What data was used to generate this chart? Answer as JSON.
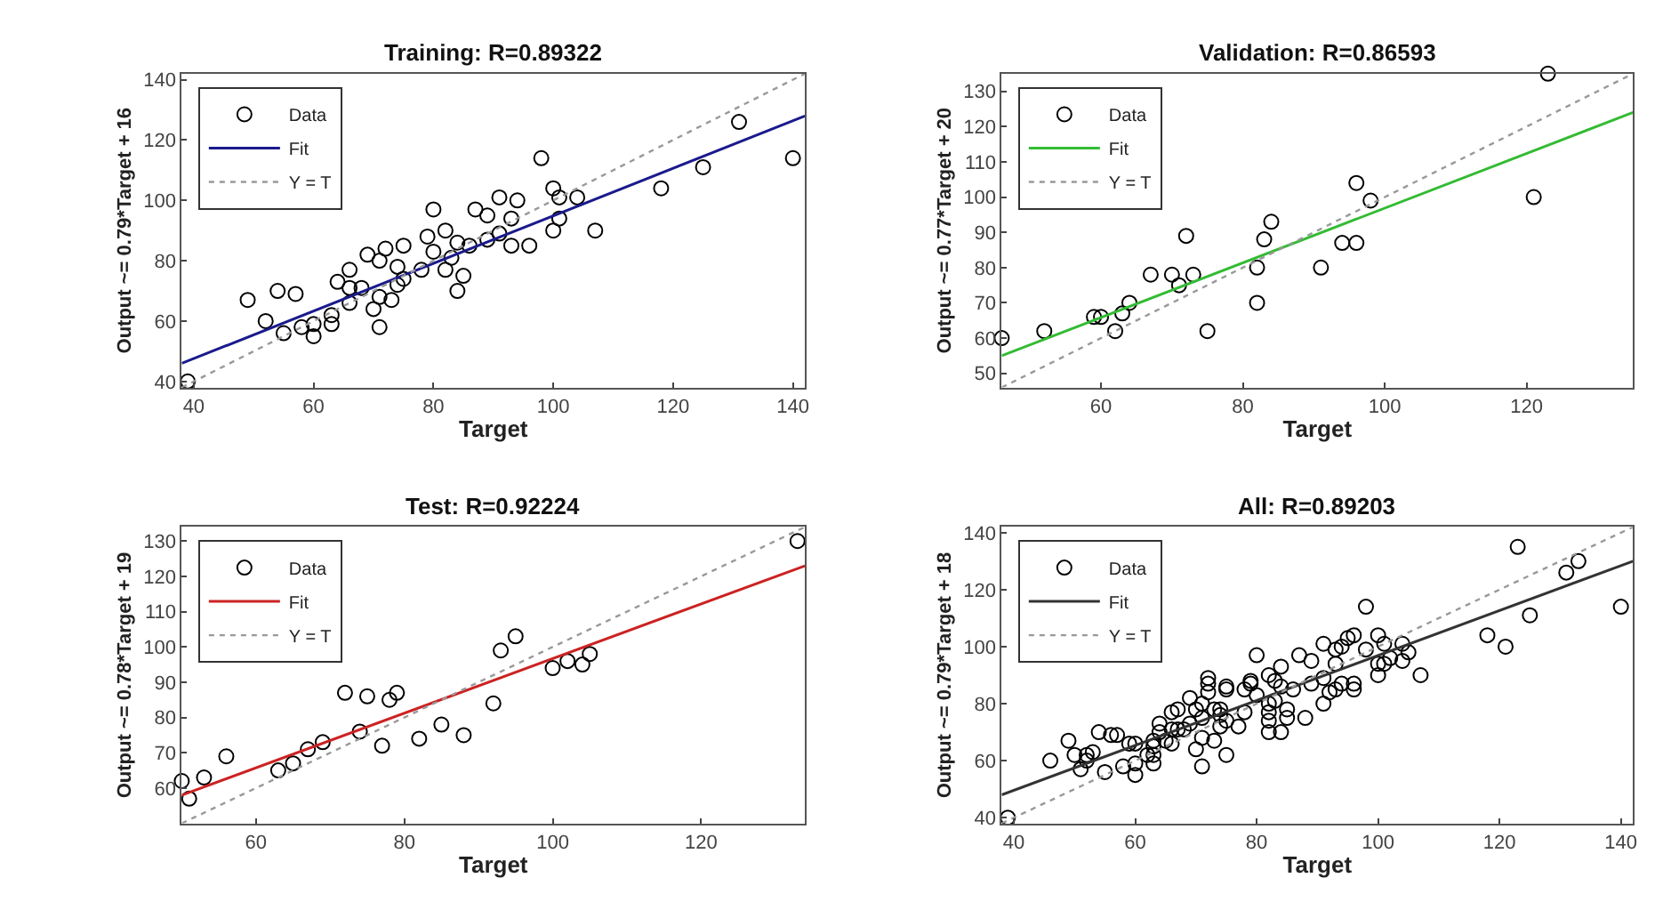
{
  "chart_data": [
    {
      "type": "scatter",
      "title": "Training: R=0.89322",
      "xlabel": "Target",
      "ylabel": "Output ~= 0.79*Target + 16",
      "xlim": [
        38,
        142
      ],
      "ylim": [
        38,
        142
      ],
      "xticks": [
        40,
        60,
        80,
        100,
        120,
        140
      ],
      "yticks": [
        40,
        60,
        80,
        100,
        120,
        140
      ],
      "legend": "top left",
      "series": [
        {
          "name": "Data",
          "marker": "circle",
          "color": "#000000",
          "x": [
            39,
            49,
            54,
            52,
            55,
            58,
            60,
            57,
            63,
            63,
            66,
            66,
            69,
            71,
            72,
            74,
            71,
            70,
            73,
            75,
            71,
            68,
            64,
            78,
            79,
            80,
            82,
            80,
            82,
            84,
            85,
            86,
            87,
            89,
            91,
            93,
            93,
            91,
            96,
            98,
            100,
            101,
            104,
            100,
            101,
            107,
            118,
            125,
            131,
            140,
            89,
            84,
            75,
            74,
            66,
            60,
            94,
            83
          ],
          "values": [
            40,
            67,
            70,
            60,
            56,
            58,
            59,
            69,
            62,
            59,
            71,
            77,
            82,
            80,
            84,
            72,
            58,
            64,
            67,
            74,
            68,
            71,
            73,
            77,
            88,
            97,
            90,
            83,
            77,
            70,
            75,
            85,
            97,
            95,
            101,
            94,
            85,
            89,
            85,
            114,
            104,
            101,
            101,
            90,
            94,
            90,
            104,
            111,
            126,
            114,
            87,
            86,
            85,
            78,
            66,
            55,
            100,
            81
          ]
        },
        {
          "name": "Fit",
          "type": "line",
          "line_style": "solid",
          "color": "#1a1a8c",
          "x": [
            38,
            142
          ],
          "values": [
            46,
            128
          ]
        },
        {
          "name": "Y = T",
          "type": "line",
          "line_style": "dotted",
          "color": "#999999",
          "x": [
            38,
            142
          ],
          "values": [
            38,
            142
          ]
        }
      ]
    },
    {
      "type": "scatter",
      "title": "Validation: R=0.86593",
      "xlabel": "Target",
      "ylabel": "Output ~= 0.77*Target + 20",
      "xlim": [
        46,
        135
      ],
      "ylim": [
        46,
        135
      ],
      "xticks": [
        60,
        80,
        100,
        120
      ],
      "yticks": [
        50,
        60,
        70,
        80,
        90,
        100,
        110,
        120,
        130
      ],
      "legend": "top left",
      "series": [
        {
          "name": "Data",
          "marker": "circle",
          "color": "#000000",
          "x": [
            46,
            52,
            59,
            60,
            62,
            63,
            64,
            67,
            70,
            71,
            72,
            73,
            75,
            82,
            82,
            83,
            84,
            91,
            94,
            96,
            96,
            98,
            121,
            123
          ],
          "values": [
            60,
            62,
            66,
            66,
            62,
            67,
            70,
            78,
            78,
            75,
            89,
            78,
            62,
            70,
            80,
            88,
            93,
            80,
            87,
            87,
            104,
            99,
            100,
            135
          ]
        },
        {
          "name": "Fit",
          "type": "line",
          "line_style": "solid",
          "color": "#33bb33",
          "x": [
            46,
            135
          ],
          "values": [
            55,
            124
          ]
        },
        {
          "name": "Y = T",
          "type": "line",
          "line_style": "dotted",
          "color": "#999999",
          "x": [
            46,
            135
          ],
          "values": [
            46,
            135
          ]
        }
      ]
    },
    {
      "type": "scatter",
      "title": "Test: R=0.92224",
      "xlabel": "Target",
      "ylabel": "Output ~= 0.78*Target + 19",
      "xlim": [
        50,
        134
      ],
      "ylim": [
        50,
        134
      ],
      "xticks": [
        60,
        80,
        100,
        120
      ],
      "yticks": [
        60,
        70,
        80,
        90,
        100,
        110,
        120,
        130
      ],
      "legend": "top left",
      "series": [
        {
          "name": "Data",
          "marker": "circle",
          "color": "#000000",
          "x": [
            50,
            51,
            53,
            56,
            63,
            65,
            67,
            69,
            72,
            74,
            75,
            77,
            78,
            79,
            82,
            85,
            88,
            92,
            93,
            95,
            100,
            102,
            104,
            105,
            133
          ],
          "values": [
            62,
            57,
            63,
            69,
            65,
            67,
            71,
            73,
            87,
            76,
            86,
            72,
            85,
            87,
            74,
            78,
            75,
            84,
            99,
            103,
            94,
            96,
            95,
            98,
            130
          ]
        },
        {
          "name": "Fit",
          "type": "line",
          "line_style": "solid",
          "color": "#cc2222",
          "x": [
            50,
            134
          ],
          "values": [
            58,
            123
          ]
        },
        {
          "name": "Y = T",
          "type": "line",
          "line_style": "dotted",
          "color": "#999999",
          "x": [
            50,
            134
          ],
          "values": [
            50,
            134
          ]
        }
      ]
    },
    {
      "type": "scatter",
      "title": "All: R=0.89203",
      "xlabel": "Target",
      "ylabel": "Output ~= 0.79*Target + 18",
      "xlim": [
        38,
        142
      ],
      "ylim": [
        38,
        142
      ],
      "xticks": [
        40,
        60,
        80,
        100,
        120,
        140
      ],
      "yticks": [
        40,
        60,
        80,
        100,
        120,
        140
      ],
      "legend": "top left",
      "series": [
        {
          "name": "Data",
          "marker": "circle",
          "color": "#000000",
          "x": [
            39,
            49,
            54,
            52,
            55,
            58,
            60,
            57,
            63,
            63,
            66,
            66,
            69,
            71,
            72,
            74,
            71,
            70,
            73,
            75,
            71,
            68,
            64,
            78,
            79,
            80,
            82,
            80,
            82,
            84,
            85,
            86,
            87,
            89,
            91,
            93,
            93,
            91,
            96,
            98,
            100,
            101,
            104,
            100,
            101,
            107,
            118,
            125,
            131,
            140,
            89,
            84,
            75,
            74,
            66,
            60,
            94,
            83,
            46,
            52,
            59,
            60,
            62,
            63,
            64,
            67,
            70,
            71,
            72,
            73,
            75,
            82,
            82,
            83,
            84,
            91,
            94,
            96,
            96,
            98,
            121,
            123,
            50,
            51,
            53,
            56,
            63,
            65,
            67,
            69,
            72,
            74,
            75,
            77,
            78,
            79,
            82,
            85,
            88,
            92,
            93,
            95,
            100,
            102,
            104,
            105,
            133
          ],
          "values": [
            40,
            67,
            70,
            60,
            56,
            58,
            59,
            69,
            62,
            59,
            71,
            77,
            82,
            80,
            84,
            72,
            58,
            64,
            67,
            74,
            68,
            71,
            73,
            77,
            88,
            97,
            90,
            83,
            77,
            70,
            75,
            85,
            97,
            95,
            101,
            94,
            85,
            89,
            85,
            114,
            104,
            101,
            101,
            90,
            94,
            90,
            104,
            111,
            126,
            114,
            87,
            86,
            85,
            78,
            66,
            55,
            100,
            81,
            60,
            62,
            66,
            66,
            62,
            67,
            70,
            78,
            78,
            75,
            89,
            78,
            62,
            70,
            80,
            88,
            93,
            80,
            87,
            87,
            104,
            99,
            100,
            135,
            62,
            57,
            63,
            69,
            65,
            67,
            71,
            73,
            87,
            76,
            86,
            72,
            85,
            87,
            74,
            78,
            75,
            84,
            99,
            103,
            94,
            96,
            95,
            98,
            130
          ]
        },
        {
          "name": "Fit",
          "type": "line",
          "line_style": "solid",
          "color": "#333333",
          "x": [
            38,
            142
          ],
          "values": [
            48,
            130
          ]
        },
        {
          "name": "Y = T",
          "type": "line",
          "line_style": "dotted",
          "color": "#999999",
          "x": [
            38,
            142
          ],
          "values": [
            38,
            142
          ]
        }
      ]
    }
  ]
}
